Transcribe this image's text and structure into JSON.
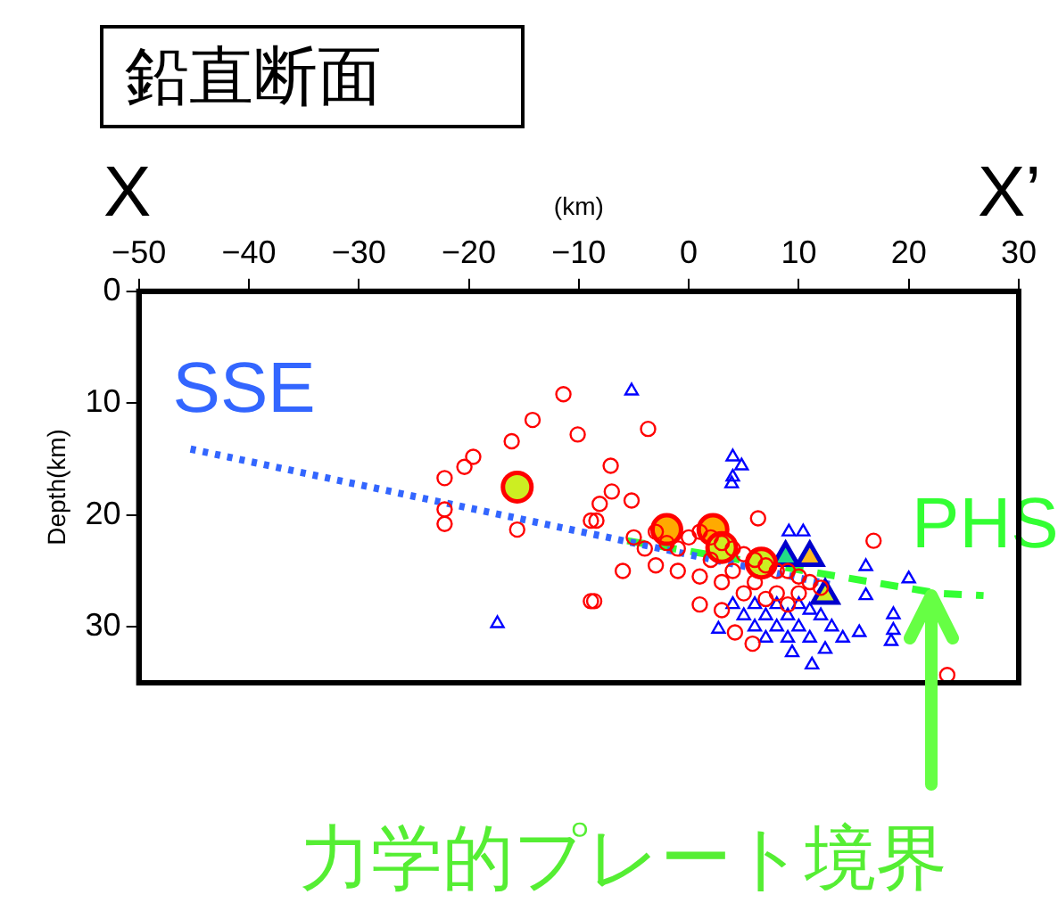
{
  "chart_data": {
    "type": "scatter",
    "title": "鉛直断面",
    "xlabel": "(km)",
    "ylabel": "Depth(km)",
    "xlim": [
      -50,
      30
    ],
    "xticks": [
      -50,
      -40,
      -30,
      -20,
      -10,
      0,
      10,
      20,
      30
    ],
    "ylim": [
      35,
      0
    ],
    "yticks": [
      0,
      10,
      20,
      30
    ],
    "legend": false,
    "annotations": [
      "X",
      "X’",
      "力学的プレート境界"
    ],
    "series": [
      {
        "type": "scatter",
        "marker": "circle",
        "color": "#ff0000",
        "x": [
          -11.4,
          -14.2,
          -16.1,
          -10.1,
          -19.6,
          -20.4,
          -22.2,
          -22.2,
          -22.2,
          -15.6,
          -8.9,
          -8.9,
          -3.7,
          -7.1,
          -7.0,
          -8.1,
          -8.4,
          -5.2,
          6.3,
          16.8,
          -8.6,
          5.8,
          23.5,
          4.2,
          -5,
          -4,
          -3,
          -2,
          -1,
          0,
          1,
          2,
          3,
          4,
          5,
          6,
          7,
          8,
          9,
          10,
          11,
          2,
          4,
          6,
          8,
          10,
          -1,
          1,
          3,
          5,
          7,
          9,
          -3,
          12,
          1,
          3,
          -6
        ],
        "values": [
          9.2,
          11.5,
          13.4,
          12.8,
          14.8,
          15.7,
          16.7,
          19.5,
          20.8,
          21.3,
          27.7,
          20.5,
          12.3,
          15.6,
          17.9,
          19,
          20.5,
          18.7,
          20.3,
          22.3,
          27.7,
          31.5,
          34.3,
          30.5,
          22,
          23,
          21.5,
          22.5,
          23,
          22,
          21.5,
          22,
          22.5,
          23,
          23.5,
          24,
          24.5,
          25,
          25,
          25.5,
          26,
          24,
          25,
          26,
          27,
          27,
          25,
          25.5,
          26,
          27,
          27.5,
          28,
          24.5,
          26.5,
          28,
          28.5,
          25
        ]
      },
      {
        "type": "scatter",
        "marker": "triangle",
        "color": "#0000ff",
        "x": [
          -17.4,
          -5.2,
          4,
          4.8,
          4,
          3.9,
          16.1,
          18.6,
          18.6,
          16.1,
          20,
          18.4,
          2.7,
          4,
          15.5,
          11.2,
          12.4,
          9.4,
          9.1,
          10.4,
          6,
          7,
          8,
          9,
          10,
          11,
          7,
          8,
          10,
          12,
          6,
          9,
          5,
          13,
          14,
          11
        ],
        "values": [
          29.7,
          8.9,
          14.8,
          15.6,
          16.6,
          17.2,
          27.2,
          28.9,
          30.3,
          24.6,
          25.7,
          31.3,
          30.2,
          28,
          30.5,
          33.4,
          32,
          32.3,
          21.5,
          21.5,
          28,
          29,
          30,
          29,
          30,
          31,
          31,
          28,
          28,
          29,
          30,
          31,
          29,
          30,
          31,
          28.5
        ]
      },
      {
        "type": "scatter",
        "marker": "circle",
        "color": "#ff0000",
        "colors": [
          "#ccee22",
          "#ffaa00",
          "#ffaa00",
          "#ccee22",
          "#ccee22"
        ],
        "x": [
          -15.6,
          -2,
          2.2,
          3,
          6.6
        ],
        "values": [
          17.5,
          21.3,
          21.3,
          22.9,
          24.3
        ]
      },
      {
        "type": "scatter",
        "marker": "triangle",
        "color": "#0000cc",
        "colors": [
          "#22dd88",
          "#ffbb22",
          "#ccee22"
        ],
        "x": [
          8.8,
          11,
          12.4
        ],
        "values": [
          23.8,
          23.8,
          27.2
        ]
      },
      {
        "type": "line",
        "name": "SSE",
        "color": "#3366ff",
        "line_style": "dotted",
        "x": [
          -45.3,
          12.8
        ],
        "values": [
          14.1,
          26.2
        ]
      },
      {
        "type": "line",
        "name": "PHS",
        "color": "#33ff33",
        "line_style": "dashed",
        "x": [
          -5.6,
          22.7,
          26.8
        ],
        "values": [
          22.3,
          27,
          27.2
        ]
      }
    ]
  }
}
